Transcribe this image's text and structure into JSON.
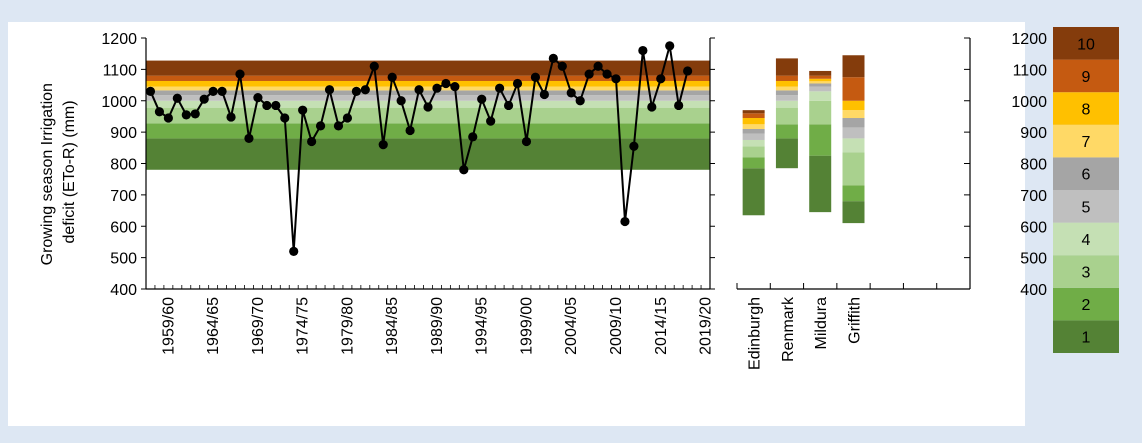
{
  "chart_data": [
    {
      "type": "line",
      "ylabel": "Growing season Irrigation deficit (ETo-R) (mm)",
      "ylim": [
        400,
        1200
      ],
      "yticks": [
        400,
        500,
        600,
        700,
        800,
        900,
        1000,
        1100,
        1200
      ],
      "x_tick_labels": [
        "1959/60",
        "1964/65",
        "1969/70",
        "1974/75",
        "1979/80",
        "1984/85",
        "1989/90",
        "1994/95",
        "1999/00",
        "2004/05",
        "2009/10",
        "2014/15",
        "2019/20"
      ],
      "x_first_season": "1957/58",
      "x_last_season": "2019/20",
      "decile_bands": [
        {
          "decile": 1,
          "from": 780,
          "to": 880
        },
        {
          "decile": 2,
          "from": 880,
          "to": 928
        },
        {
          "decile": 3,
          "from": 928,
          "to": 978
        },
        {
          "decile": 4,
          "from": 978,
          "to": 1000
        },
        {
          "decile": 5,
          "from": 1000,
          "to": 1018
        },
        {
          "decile": 6,
          "from": 1018,
          "to": 1033
        },
        {
          "decile": 7,
          "from": 1033,
          "to": 1045
        },
        {
          "decile": 8,
          "from": 1045,
          "to": 1063
        },
        {
          "decile": 9,
          "from": 1063,
          "to": 1080
        },
        {
          "decile": 10,
          "from": 1080,
          "to": 1128
        }
      ],
      "series": [
        {
          "x": [
            "1957/58",
            "1958/59",
            "1959/60",
            "1960/61",
            "1961/62",
            "1962/63",
            "1963/64",
            "1964/65",
            "1965/66",
            "1966/67",
            "1967/68",
            "1968/69",
            "1969/70",
            "1970/71",
            "1971/72",
            "1972/73",
            "1973/74",
            "1974/75",
            "1975/76",
            "1976/77",
            "1977/78",
            "1978/79",
            "1979/80",
            "1980/81",
            "1981/82",
            "1982/83",
            "1983/84",
            "1984/85",
            "1985/86",
            "1986/87",
            "1987/88",
            "1988/89",
            "1989/90",
            "1990/91",
            "1991/92",
            "1992/93",
            "1993/94",
            "1994/95",
            "1995/96",
            "1996/97",
            "1997/98",
            "1998/99",
            "1999/00",
            "2000/01",
            "2001/02",
            "2002/03",
            "2003/04",
            "2004/05",
            "2005/06",
            "2006/07",
            "2007/08",
            "2008/09",
            "2009/10",
            "2010/11",
            "2011/12",
            "2012/13",
            "2013/14",
            "2014/15",
            "2015/16",
            "2016/17",
            "2017/18"
          ],
          "values": [
            1030,
            965,
            945,
            1008,
            955,
            958,
            1005,
            1030,
            1030,
            948,
            1085,
            880,
            1010,
            985,
            985,
            945,
            520,
            970,
            870,
            920,
            1035,
            920,
            945,
            1030,
            1035,
            1110,
            860,
            1075,
            1000,
            905,
            1035,
            980,
            1040,
            1055,
            1045,
            780,
            885,
            1005,
            935,
            1040,
            985,
            1055,
            870,
            1075,
            1020,
            1135,
            1110,
            1025,
            1000,
            1085,
            1110,
            1085,
            1070,
            615,
            855,
            1160,
            980,
            1070,
            1175,
            985,
            1095
          ]
        }
      ]
    },
    {
      "type": "bar",
      "stacked": true,
      "categories": [
        "Edinburgh",
        "Renmark",
        "Mildura",
        "Griffith"
      ],
      "ylim": [
        400,
        1200
      ],
      "columns": [
        {
          "name": "Edinburgh",
          "bounds": [
            635,
            785,
            820,
            855,
            875,
            895,
            910,
            925,
            945,
            960,
            970
          ]
        },
        {
          "name": "Renmark",
          "bounds": [
            785,
            880,
            925,
            978,
            1000,
            1018,
            1033,
            1045,
            1063,
            1080,
            1135
          ]
        },
        {
          "name": "Mildura",
          "bounds": [
            645,
            825,
            925,
            1000,
            1030,
            1045,
            1055,
            1062,
            1070,
            1080,
            1095
          ]
        },
        {
          "name": "Griffith",
          "bounds": [
            610,
            680,
            730,
            835,
            880,
            915,
            945,
            970,
            1000,
            1075,
            1145
          ]
        }
      ]
    },
    {
      "type": "legend",
      "ylim": [
        400,
        1200
      ],
      "yticks": [
        400,
        500,
        600,
        700,
        800,
        900,
        1000,
        1100,
        1200
      ],
      "deciles": [
        "1",
        "2",
        "3",
        "4",
        "5",
        "6",
        "7",
        "8",
        "9",
        "10"
      ]
    }
  ],
  "colors": {
    "decile": [
      "#548235",
      "#70ad47",
      "#a9d18e",
      "#c5e0b4",
      "#bfbfbf",
      "#a5a5a5",
      "#ffd966",
      "#ffc000",
      "#c55a11",
      "#843c0c"
    ],
    "series_line": "#000000",
    "background": "#dde7f3"
  }
}
